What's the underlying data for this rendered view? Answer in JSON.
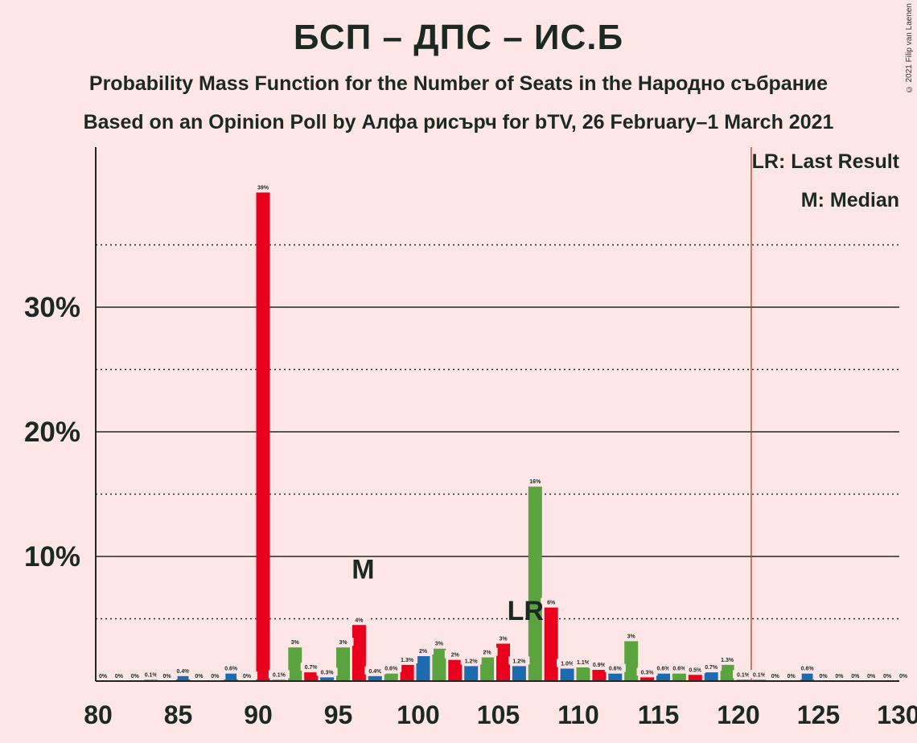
{
  "title": "БСП – ДПС – ИС.Б",
  "subtitle_1": "Probability Mass Function for the Number of Seats in the Народно събрание",
  "subtitle_2": "Based on an Opinion Poll by Алфа рисърч for bTV, 26 February–1 March 2021",
  "copyright": "© 2021 Filip van Laenen",
  "legend": {
    "last_result": "LR: Last Result",
    "median": "M: Median"
  },
  "colors": {
    "red": "#e8001c",
    "blue": "#1c6bb0",
    "green": "#5aa33f",
    "majority_line": "#c0392b",
    "background": "#ffe6e6"
  },
  "chart_data": {
    "type": "bar",
    "xlim": [
      80,
      130
    ],
    "ylim": [
      0,
      42
    ],
    "x_ticks": [
      80,
      85,
      90,
      95,
      100,
      105,
      110,
      115,
      120,
      125,
      130
    ],
    "y_ticks": [
      "10%",
      "20%",
      "30%"
    ],
    "y_tick_values": [
      10,
      20,
      30
    ],
    "grid": "solid at 10%, 20%, 30%; dotted at 5%, 15%, 25%, 35%",
    "majority_line_x": 120.5,
    "last_result_seat": 107,
    "last_result_label": "LR",
    "median_seat": 96,
    "median_label": "M",
    "bars": [
      {
        "seat": 80,
        "value": 0,
        "label": "0%",
        "color": "blue"
      },
      {
        "seat": 81,
        "value": 0,
        "label": "0%",
        "color": "green"
      },
      {
        "seat": 82,
        "value": 0,
        "label": "0%",
        "color": "red"
      },
      {
        "seat": 83,
        "value": 0.1,
        "label": "0.1%",
        "color": "blue"
      },
      {
        "seat": 84,
        "value": 0,
        "label": "0%",
        "color": "green"
      },
      {
        "seat": 85,
        "value": 0.4,
        "label": "0.4%",
        "color": "blue"
      },
      {
        "seat": 86,
        "value": 0,
        "label": "0%",
        "color": "green"
      },
      {
        "seat": 87,
        "value": 0,
        "label": "0%",
        "color": "red"
      },
      {
        "seat": 88,
        "value": 0.6,
        "label": "0.6%",
        "color": "blue"
      },
      {
        "seat": 89,
        "value": 0,
        "label": "0%",
        "color": "green"
      },
      {
        "seat": 90,
        "value": 39.2,
        "label": "39%",
        "color": "red"
      },
      {
        "seat": 91,
        "value": 0.1,
        "label": "0.1%",
        "color": "blue"
      },
      {
        "seat": 92,
        "value": 2.7,
        "label": "3%",
        "color": "green"
      },
      {
        "seat": 93,
        "value": 0.7,
        "label": "0.7%",
        "color": "red"
      },
      {
        "seat": 94,
        "value": 0.3,
        "label": "0.3%",
        "color": "blue"
      },
      {
        "seat": 95,
        "value": 2.7,
        "label": "3%",
        "color": "green"
      },
      {
        "seat": 96,
        "value": 4.5,
        "label": "4%",
        "color": "red"
      },
      {
        "seat": 97,
        "value": 0.4,
        "label": "0.4%",
        "color": "blue"
      },
      {
        "seat": 98,
        "value": 0.6,
        "label": "0.6%",
        "color": "green"
      },
      {
        "seat": 99,
        "value": 1.3,
        "label": "1.3%",
        "color": "red"
      },
      {
        "seat": 100,
        "value": 2.0,
        "label": "2%",
        "color": "blue"
      },
      {
        "seat": 101,
        "value": 2.6,
        "label": "3%",
        "color": "green"
      },
      {
        "seat": 102,
        "value": 1.7,
        "label": "2%",
        "color": "red"
      },
      {
        "seat": 103,
        "value": 1.2,
        "label": "1.2%",
        "color": "blue"
      },
      {
        "seat": 104,
        "value": 1.9,
        "label": "2%",
        "color": "green"
      },
      {
        "seat": 105,
        "value": 3.0,
        "label": "3%",
        "color": "red"
      },
      {
        "seat": 106,
        "value": 1.2,
        "label": "1.2%",
        "color": "blue"
      },
      {
        "seat": 107,
        "value": 15.6,
        "label": "16%",
        "color": "green"
      },
      {
        "seat": 108,
        "value": 5.9,
        "label": "6%",
        "color": "red"
      },
      {
        "seat": 109,
        "value": 1.0,
        "label": "1.0%",
        "color": "blue"
      },
      {
        "seat": 110,
        "value": 1.1,
        "label": "1.1%",
        "color": "green"
      },
      {
        "seat": 111,
        "value": 0.9,
        "label": "0.9%",
        "color": "red"
      },
      {
        "seat": 112,
        "value": 0.6,
        "label": "0.6%",
        "color": "blue"
      },
      {
        "seat": 113,
        "value": 3.2,
        "label": "3%",
        "color": "green"
      },
      {
        "seat": 114,
        "value": 0.3,
        "label": "0.3%",
        "color": "red"
      },
      {
        "seat": 115,
        "value": 0.6,
        "label": "0.6%",
        "color": "blue"
      },
      {
        "seat": 116,
        "value": 0.6,
        "label": "0.6%",
        "color": "green"
      },
      {
        "seat": 117,
        "value": 0.5,
        "label": "0.5%",
        "color": "red"
      },
      {
        "seat": 118,
        "value": 0.7,
        "label": "0.7%",
        "color": "blue"
      },
      {
        "seat": 119,
        "value": 1.3,
        "label": "1.3%",
        "color": "green"
      },
      {
        "seat": 120,
        "value": 0.1,
        "label": "0.1%",
        "color": "red"
      },
      {
        "seat": 121,
        "value": 0.1,
        "label": "0.1%",
        "color": "blue"
      },
      {
        "seat": 122,
        "value": 0,
        "label": "0%",
        "color": "green"
      },
      {
        "seat": 123,
        "value": 0,
        "label": "0%",
        "color": "red"
      },
      {
        "seat": 124,
        "value": 0.6,
        "label": "0.6%",
        "color": "blue"
      },
      {
        "seat": 125,
        "value": 0,
        "label": "0%",
        "color": "green"
      },
      {
        "seat": 126,
        "value": 0,
        "label": "0%",
        "color": "red"
      },
      {
        "seat": 127,
        "value": 0,
        "label": "0%",
        "color": "blue"
      },
      {
        "seat": 128,
        "value": 0,
        "label": "0%",
        "color": "green"
      },
      {
        "seat": 129,
        "value": 0,
        "label": "0%",
        "color": "red"
      },
      {
        "seat": 130,
        "value": 0,
        "label": "0%",
        "color": "blue"
      }
    ]
  }
}
